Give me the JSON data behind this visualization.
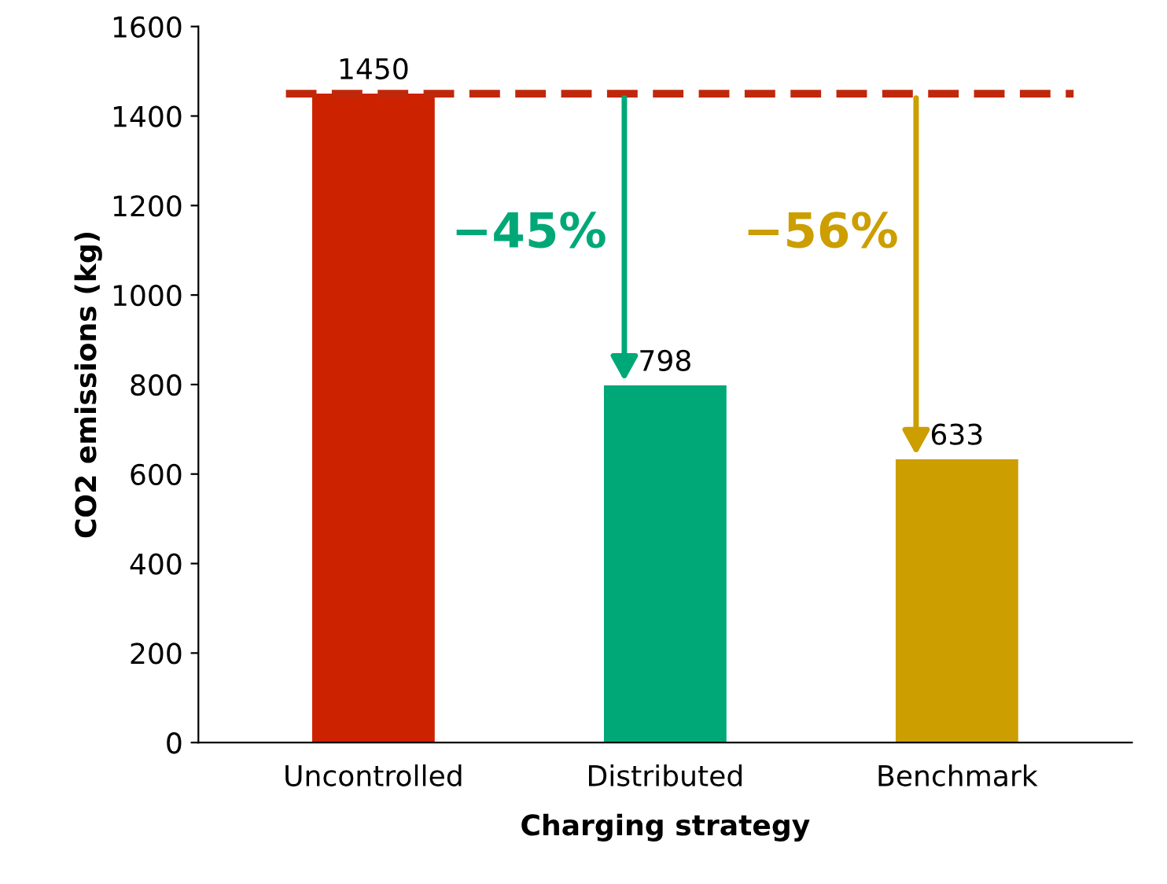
{
  "chart_data": {
    "type": "bar",
    "xlabel": "Charging strategy",
    "ylabel": "CO2 emissions (kg)",
    "categories": [
      "Uncontrolled",
      "Distributed",
      "Benchmark"
    ],
    "values": [
      1450,
      798,
      633
    ],
    "colors": [
      "#cc2200",
      "#00a878",
      "#cc9e00"
    ],
    "data_labels": true,
    "ylim": [
      0,
      1600
    ],
    "yticks": [
      0,
      200,
      400,
      600,
      800,
      1000,
      1200,
      1400,
      1600
    ],
    "grid": false,
    "ref_lines": [
      {
        "axis": "y",
        "value": 1450,
        "label": null,
        "color": "#c0280c",
        "line_style": "dashed"
      }
    ],
    "annotations": [
      "−45%",
      "−56%"
    ]
  }
}
